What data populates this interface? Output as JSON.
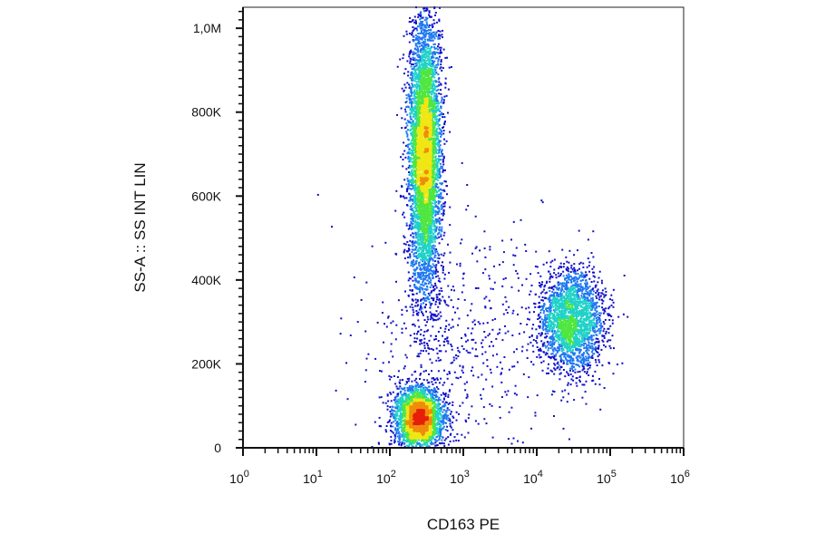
{
  "chart_data": {
    "type": "scatter",
    "title": "",
    "xlabel": "CD163 PE",
    "ylabel": "SS-A :: SS INT LIN",
    "x_scale": "log",
    "y_scale": "linear",
    "xlim": [
      1,
      1000000
    ],
    "ylim": [
      0,
      1050000
    ],
    "grid": false,
    "x_major_ticks": [
      {
        "base": "10",
        "exp": "0"
      },
      {
        "base": "10",
        "exp": "1"
      },
      {
        "base": "10",
        "exp": "2"
      },
      {
        "base": "10",
        "exp": "3"
      },
      {
        "base": "10",
        "exp": "4"
      },
      {
        "base": "10",
        "exp": "5"
      },
      {
        "base": "10",
        "exp": "6"
      }
    ],
    "y_major_ticks": [
      {
        "value": 0,
        "label": "0"
      },
      {
        "value": 200000,
        "label": "200K"
      },
      {
        "value": 400000,
        "label": "400K"
      },
      {
        "value": 600000,
        "label": "600K"
      },
      {
        "value": 800000,
        "label": "800K"
      },
      {
        "value": 1000000,
        "label": "1,0M"
      }
    ],
    "color_scale": [
      "#1010c8",
      "#1e78f0",
      "#20d2c8",
      "#50e640",
      "#f0e614",
      "#f08c0a",
      "#e61e0a"
    ],
    "populations": [
      {
        "x_center": 300,
        "y_center": 700000,
        "x_spread_decades": 0.11,
        "y_spread": 170000,
        "count": 5600,
        "peak_density": "yellow-orange"
      },
      {
        "x_center": 250,
        "y_center": 70000,
        "x_spread_decades": 0.17,
        "y_spread": 38000,
        "count": 2800,
        "peak_density": "red"
      },
      {
        "x_center": 30000,
        "y_center": 300000,
        "x_spread_decades": 0.22,
        "y_spread": 60000,
        "count": 2400,
        "peak_density": "cyan"
      },
      {
        "x_center": 1000,
        "y_center": 250000,
        "x_spread_decades": 0.7,
        "y_spread": 150000,
        "count": 500,
        "peak_density": "blue"
      }
    ]
  }
}
